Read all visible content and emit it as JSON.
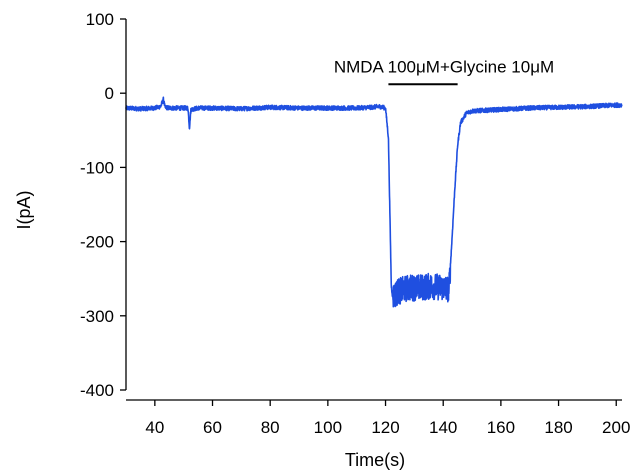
{
  "chart_data": {
    "type": "line",
    "title": "",
    "xlabel": "Time(s)",
    "ylabel": "I(pA)",
    "xlim": [
      30,
      202
    ],
    "ylim": [
      -400,
      100
    ],
    "x_ticks": [
      40,
      60,
      80,
      100,
      120,
      140,
      160,
      180,
      200
    ],
    "y_ticks": [
      100,
      0,
      -100,
      -200,
      -300,
      -400
    ],
    "x_tick_labels": [
      "40",
      "60",
      "80",
      "100",
      "120",
      "140",
      "160",
      "180",
      "200"
    ],
    "y_tick_labels": [
      "100",
      "0",
      "-100",
      "-200",
      "-300",
      "-400"
    ],
    "grid": false,
    "annotation": {
      "text": "NMDA 100μM+Glycine 10μM",
      "x_start": 121,
      "x_end": 145,
      "y": 12
    },
    "series": [
      {
        "color": "#1f4fe0",
        "baseline_noise_pA": 3,
        "plateau_noise_pA": 18,
        "points": [
          [
            30,
            -20
          ],
          [
            35,
            -21
          ],
          [
            40,
            -20
          ],
          [
            42,
            -18
          ],
          [
            43,
            -8
          ],
          [
            43.5,
            -19
          ],
          [
            45,
            -20
          ],
          [
            50,
            -20
          ],
          [
            51.5,
            -20
          ],
          [
            52,
            -47
          ],
          [
            52.5,
            -22
          ],
          [
            55,
            -20
          ],
          [
            60,
            -20
          ],
          [
            70,
            -21
          ],
          [
            80,
            -19
          ],
          [
            90,
            -20
          ],
          [
            100,
            -20
          ],
          [
            110,
            -20
          ],
          [
            115,
            -19
          ],
          [
            118,
            -18
          ],
          [
            120,
            -20
          ],
          [
            121,
            -60
          ],
          [
            121.6,
            -180
          ],
          [
            122,
            -260
          ],
          [
            122.5,
            -275
          ],
          [
            124,
            -268
          ],
          [
            128,
            -262
          ],
          [
            132,
            -262
          ],
          [
            136,
            -260
          ],
          [
            140,
            -262
          ],
          [
            142,
            -264
          ],
          [
            143,
            -200
          ],
          [
            144,
            -130
          ],
          [
            145,
            -70
          ],
          [
            146,
            -40
          ],
          [
            148,
            -27
          ],
          [
            150,
            -24
          ],
          [
            160,
            -22
          ],
          [
            170,
            -20
          ],
          [
            180,
            -19
          ],
          [
            190,
            -18
          ],
          [
            200,
            -16
          ],
          [
            202,
            -16
          ]
        ]
      }
    ]
  }
}
